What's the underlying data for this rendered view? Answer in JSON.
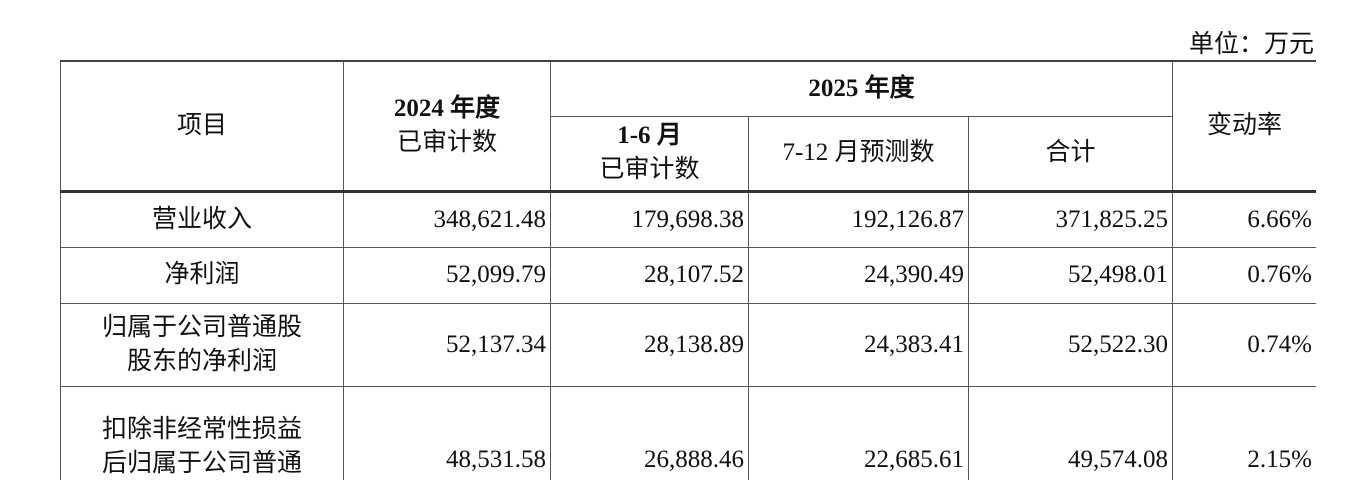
{
  "unit_label": "单位：万元",
  "header": {
    "item": "项目",
    "y2024_line1": "2024 年度",
    "y2024_line2": "已审计数",
    "y2025": "2025 年度",
    "h1_line1": "1-6 月",
    "h1_line2": "已审计数",
    "h2": "7-12 月预测数",
    "total": "合计",
    "change": "变动率"
  },
  "rows": [
    {
      "label_lines": [
        "营业收入"
      ],
      "y2024": "348,621.48",
      "h1": "179,698.38",
      "h2": "192,126.87",
      "total": "371,825.25",
      "change": "6.66%"
    },
    {
      "label_lines": [
        "净利润"
      ],
      "y2024": "52,099.79",
      "h1": "28,107.52",
      "h2": "24,390.49",
      "total": "52,498.01",
      "change": "0.76%"
    },
    {
      "label_lines": [
        "归属于公司普通股",
        "股东的净利润"
      ],
      "y2024": "52,137.34",
      "h1": "28,138.89",
      "h2": "24,383.41",
      "total": "52,522.30",
      "change": "0.74%"
    },
    {
      "label_lines": [
        "扣除非经常性损益",
        "后归属于公司普通"
      ],
      "y2024": "48,531.58",
      "h1": "26,888.46",
      "h2": "22,685.61",
      "total": "49,574.08",
      "change": "2.15%"
    }
  ]
}
